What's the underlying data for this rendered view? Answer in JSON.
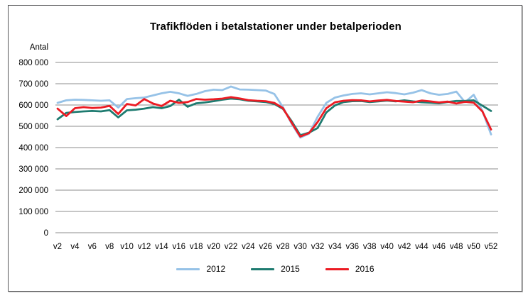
{
  "chart_data": {
    "type": "line",
    "title": "Trafikflöden i betalstationer under betalperioden",
    "xlabel": "",
    "ylabel": "Antal",
    "y_axis_label": "Antal",
    "ylim": [
      0,
      800000
    ],
    "grid": true,
    "legend_position": "bottom",
    "x_unit": "week",
    "x_start_week": 2,
    "x_tick_labels": [
      "v2",
      "v4",
      "v6",
      "v8",
      "v10",
      "v12",
      "v14",
      "v16",
      "v18",
      "v20",
      "v22",
      "v24",
      "v26",
      "v28",
      "v30",
      "v32",
      "v34",
      "v36",
      "v38",
      "v40",
      "v42",
      "v44",
      "v46",
      "v48",
      "v50",
      "v52"
    ],
    "y_ticks": [
      {
        "value": 0,
        "label": "0"
      },
      {
        "value": 100000,
        "label": "100 000"
      },
      {
        "value": 200000,
        "label": "200 000"
      },
      {
        "value": 300000,
        "label": "300 000"
      },
      {
        "value": 400000,
        "label": "400 000"
      },
      {
        "value": 500000,
        "label": "500 000"
      },
      {
        "value": 600000,
        "label": "600 000"
      },
      {
        "value": 700000,
        "label": "700 000"
      },
      {
        "value": 800000,
        "label": "800 000"
      }
    ],
    "gridline_color": "#8c8c8c",
    "series": [
      {
        "name": "2012",
        "color": "#96c2e7",
        "values": [
          610000,
          622000,
          625000,
          624000,
          622000,
          620000,
          622000,
          588000,
          628000,
          632000,
          635000,
          645000,
          655000,
          662000,
          655000,
          643000,
          652000,
          665000,
          672000,
          670000,
          687000,
          673000,
          672000,
          670000,
          668000,
          652000,
          590000,
          512000,
          447000,
          465000,
          545000,
          610000,
          635000,
          645000,
          652000,
          655000,
          650000,
          655000,
          660000,
          656000,
          650000,
          658000,
          670000,
          655000,
          648000,
          652000,
          663000,
          613000,
          648000,
          573000,
          462000
        ]
      },
      {
        "name": "2015",
        "color": "#1e7b70",
        "values": [
          533000,
          563000,
          567000,
          570000,
          572000,
          570000,
          576000,
          542000,
          575000,
          578000,
          583000,
          590000,
          585000,
          595000,
          625000,
          592000,
          608000,
          612000,
          618000,
          625000,
          630000,
          627000,
          620000,
          617000,
          614000,
          605000,
          582000,
          524000,
          458000,
          470000,
          492000,
          565000,
          598000,
          614000,
          618000,
          619000,
          614000,
          617000,
          621000,
          617000,
          622000,
          617000,
          613000,
          611000,
          608000,
          614000,
          619000,
          619000,
          622000,
          597000,
          572000
        ]
      },
      {
        "name": "2016",
        "color": "#ec1b23",
        "values": [
          583000,
          548000,
          585000,
          590000,
          586000,
          588000,
          596000,
          558000,
          605000,
          598000,
          628000,
          607000,
          595000,
          620000,
          610000,
          614000,
          628000,
          625000,
          627000,
          630000,
          637000,
          631000,
          623000,
          620000,
          618000,
          610000,
          585000,
          517000,
          452000,
          468000,
          520000,
          585000,
          613000,
          620000,
          623000,
          622000,
          617000,
          621000,
          624000,
          619000,
          616000,
          613000,
          621000,
          617000,
          612000,
          616000,
          607000,
          615000,
          611000,
          570000,
          485000
        ]
      }
    ]
  }
}
